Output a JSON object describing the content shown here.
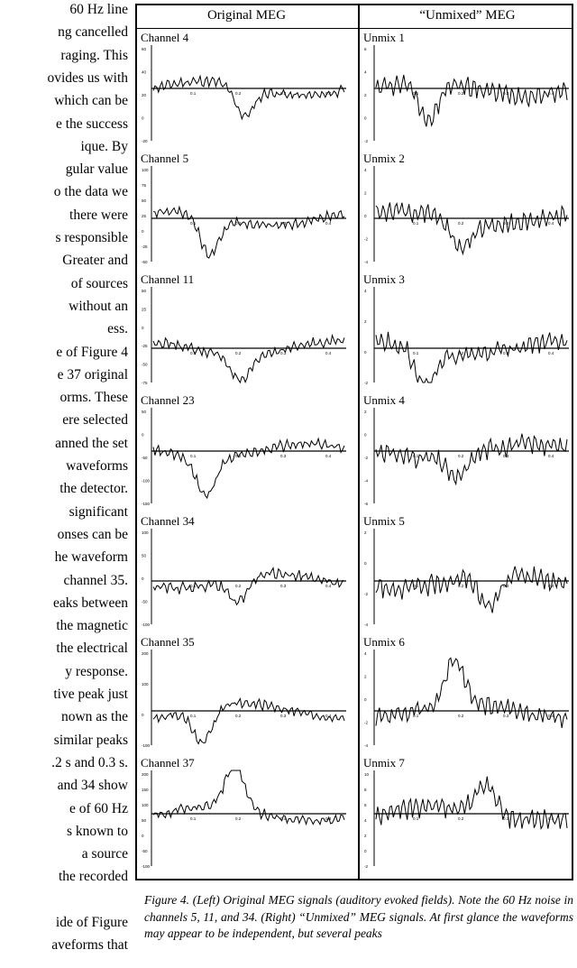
{
  "left_text_lines": [
    "60 Hz line",
    "ng cancelled",
    "raging. This",
    "ovides us with",
    "which can be",
    "e the success",
    "ique. By",
    "gular value",
    "o the data we",
    "there were",
    "s responsible",
    "Greater and",
    "of sources",
    "without an",
    "ess.",
    "e of Figure 4",
    "e 37 original",
    "orms. These",
    "ere selected",
    "anned the set",
    "waveforms",
    "the detector.",
    "significant",
    "onses can be",
    "he waveform",
    "channel 35.",
    "eaks between",
    "the magnetic",
    "the electrical",
    "y response.",
    "tive peak just",
    "nown as the",
    "similar peaks",
    ".2 s and 0.3 s.",
    "and 34 show",
    "e of 60 Hz",
    "s known to",
    "a source",
    "the recorded",
    "",
    "ide of Figure",
    "aveforms that"
  ],
  "figure": {
    "left_title": "Original MEG",
    "right_title": "“Unmixed” MEG",
    "left_panels": [
      {
        "label": "Channel 4",
        "ticks": [
          "60",
          "40",
          "20",
          "0",
          "-20"
        ]
      },
      {
        "label": "Channel 5",
        "ticks": [
          "100",
          "75",
          "50",
          "25",
          "0",
          "-25",
          "-50"
        ]
      },
      {
        "label": "Channel 11",
        "ticks": [
          "50",
          "25",
          "0",
          "-25",
          "-50",
          "-75"
        ]
      },
      {
        "label": "Channel 23",
        "ticks": [
          "50",
          "0",
          "-50",
          "-100",
          "-150"
        ]
      },
      {
        "label": "Channel 34",
        "ticks": [
          "100",
          "50",
          "0",
          "-50",
          "-100"
        ]
      },
      {
        "label": "Channel 35",
        "ticks": [
          "200",
          "100",
          "0",
          "-100"
        ]
      },
      {
        "label": "Channel 37",
        "ticks": [
          "200",
          "150",
          "100",
          "50",
          "0",
          "-50",
          "-100"
        ]
      }
    ],
    "right_panels": [
      {
        "label": "Unmix 1",
        "ticks": [
          "6",
          "4",
          "2",
          "0",
          "-2"
        ]
      },
      {
        "label": "Unmix 2",
        "ticks": [
          "4",
          "2",
          "0",
          "-2",
          "-4"
        ]
      },
      {
        "label": "Unmix 3",
        "ticks": [
          "4",
          "2",
          "0",
          "-2"
        ]
      },
      {
        "label": "Unmix 4",
        "ticks": [
          "2",
          "0",
          "-2",
          "-4",
          "-6"
        ]
      },
      {
        "label": "Unmix 5",
        "ticks": [
          "2",
          "0",
          "-2",
          "-4"
        ]
      },
      {
        "label": "Unmix 6",
        "ticks": [
          "4",
          "2",
          "0",
          "-2",
          "-4"
        ]
      },
      {
        "label": "Unmix 7",
        "ticks": [
          "10",
          "8",
          "6",
          "4",
          "2",
          "0",
          "-2"
        ]
      }
    ],
    "x_ticks": [
      "0.1",
      "0.2",
      "0.3",
      "0.4"
    ]
  },
  "caption": "Figure 4. (Left) Original MEG signals (auditory evoked fields). Note the 60 Hz noise in channels 5, 11, and 34. (Right) “Unmixed” MEG signals. At first glance the waveforms may appear to be independent, but several peaks"
}
